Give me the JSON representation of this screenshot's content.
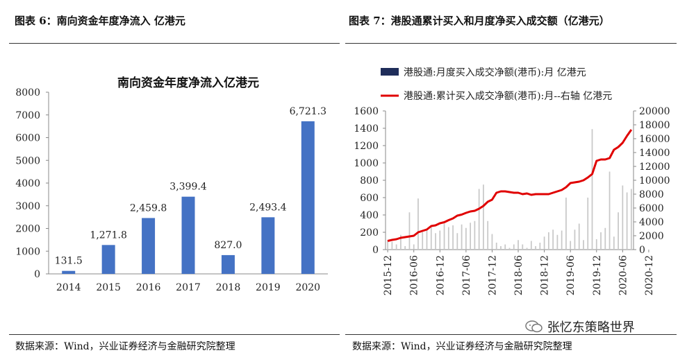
{
  "left_panel": {
    "caption": "图表 6：南向资金年度净流入 亿港元",
    "source": "数据来源：Wind，兴业证券经济与金融研究院整理"
  },
  "right_panel": {
    "caption": "图表 7：港股通累计买入和月度净买入成交额（亿港元）",
    "source": "数据来源：Wind，兴业证券经济与金融研究院整理"
  },
  "watermark": {
    "text": "张忆东策略世界"
  },
  "colors": {
    "bar_left": "#4472C4",
    "bar_right": "#1F2D5A",
    "line": "#E00000",
    "axis": "#888888"
  },
  "chart_data": [
    {
      "type": "bar",
      "title": "南向资金年度净流入亿港元",
      "categories": [
        "2014",
        "2015",
        "2016",
        "2017",
        "2018",
        "2019",
        "2020"
      ],
      "values": [
        131.5,
        1271.8,
        2459.8,
        3399.4,
        827.0,
        2493.4,
        6721.3
      ],
      "data_labels": [
        "131.5",
        "1,271.8",
        "2,459.8",
        "3,399.4",
        "827.0",
        "2,493.4",
        "6,721.3"
      ],
      "ylim": [
        0,
        8000
      ],
      "yticks": [
        "0",
        "1000",
        "2000",
        "3000",
        "4000",
        "5000",
        "6000",
        "7000",
        "8000"
      ],
      "grid": false,
      "legend": "none"
    },
    {
      "type": "bar+line",
      "x_ticks": [
        "2015-12",
        "2016-06",
        "2016-12",
        "2017-06",
        "2017-12",
        "2018-06",
        "2018-12",
        "2019-06",
        "2019-12",
        "2020-06",
        "2020-12"
      ],
      "x_start": "2015-12",
      "legend_position": "top",
      "y_left": {
        "ylim": [
          0,
          1600
        ],
        "ticks": [
          "0",
          "200",
          "400",
          "600",
          "800",
          "1000",
          "1200",
          "1400",
          "1600"
        ]
      },
      "y_right": {
        "ylim": [
          0,
          20000
        ],
        "ticks": [
          "0",
          "2000",
          "4000",
          "6000",
          "8000",
          "10000",
          "12000",
          "14000",
          "16000",
          "18000",
          "20000"
        ]
      },
      "series": [
        {
          "name": "港股通:月度买入成交净额(港币):月 亿港元",
          "type": "bar",
          "axis": "left",
          "values": [
            110,
            90,
            60,
            170,
            40,
            430,
            60,
            590,
            200,
            230,
            280,
            190,
            220,
            300,
            260,
            280,
            190,
            290,
            250,
            310,
            330,
            700,
            750,
            330,
            180,
            80,
            40,
            60,
            20,
            60,
            110,
            60,
            20,
            100,
            40,
            80,
            150,
            200,
            230,
            170,
            220,
            600,
            100,
            230,
            300,
            110,
            600,
            1390,
            120,
            200,
            250,
            900,
            150,
            430,
            740,
            660,
            700
          ]
        },
        {
          "name": "港股通:累计买入成交净额(港币):月--右轴 亿港元",
          "type": "line",
          "axis": "right",
          "values": [
            1250,
            1400,
            1500,
            1700,
            1800,
            1900,
            2000,
            2500,
            2700,
            2900,
            3400,
            3500,
            3800,
            3950,
            4250,
            4500,
            4900,
            5050,
            5300,
            5500,
            5600,
            5900,
            6300,
            6900,
            7200,
            8200,
            8400,
            8400,
            8300,
            8200,
            8200,
            8000,
            8100,
            7900,
            8000,
            8000,
            8000,
            8000,
            8200,
            8400,
            8600,
            9000,
            9600,
            9700,
            9800,
            10000,
            10400,
            10900,
            12800,
            13000,
            13000,
            13200,
            14400,
            14800,
            15400,
            16400,
            17300
          ]
        }
      ]
    }
  ]
}
